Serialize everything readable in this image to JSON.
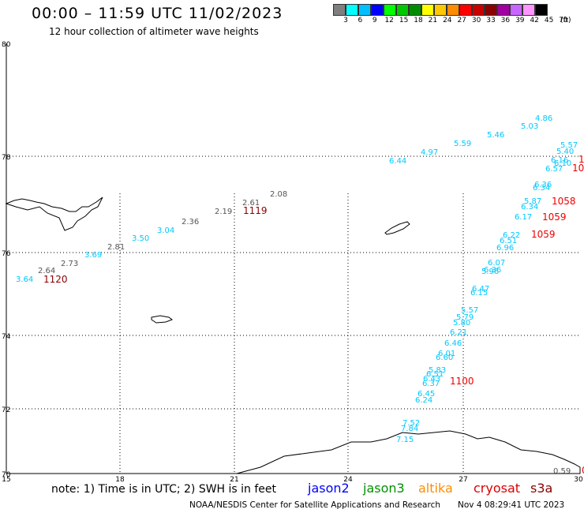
{
  "header": {
    "title": "00:00 – 11:59 UTC 11/02/2023",
    "subtitle": "12 hour collection of altimeter wave heights"
  },
  "color_scale": {
    "labels": [
      "3",
      "6",
      "9",
      "12",
      "15",
      "18",
      "21",
      "24",
      "27",
      "30",
      "33",
      "36",
      "39",
      "42",
      "45",
      "70"
    ],
    "colors": [
      "#7f7f7f",
      "#00ffff",
      "#00bfff",
      "#0000ff",
      "#00ff00",
      "#00c800",
      "#008c00",
      "#ffff00",
      "#ffc800",
      "#ff8c00",
      "#ff0000",
      "#c80000",
      "#8b0000",
      "#a000a0",
      "#c864ff",
      "#ff96ff",
      "#000000"
    ],
    "unit": "(ft)"
  },
  "map": {
    "lat_labels": [
      "80",
      "78",
      "76",
      "74",
      "72",
      "70"
    ],
    "lon_labels": [
      "15",
      "18",
      "21",
      "24",
      "27",
      "30"
    ],
    "grid": true
  },
  "tracks": {
    "gray_values": [
      "2.08",
      "2.61",
      "2.19",
      "2.36",
      "2.81",
      "2.73",
      "2.64",
      "0.59"
    ],
    "cyan_values": [
      "4.86",
      "5.03",
      "5.46",
      "5.59",
      "4.97",
      "6.44",
      "5.57",
      "5.40",
      "6.16",
      "6.10",
      "6.57",
      "3.04",
      "3.50",
      "3.69",
      "3.64",
      "6.36",
      "6.34",
      "5.87",
      "6.34",
      "6.17",
      "6.22",
      "6.51",
      "6.96",
      "6.07",
      "6.36",
      "5.96",
      "6.47",
      "6.15",
      "5.57",
      "5.79",
      "5.80",
      "6.21",
      "6.46",
      "6.01",
      "6.60",
      "5.83",
      "6.51",
      "6.43",
      "6.37",
      "6.45",
      "6.24",
      "7.52",
      "7.84",
      "7.15"
    ],
    "labels_red": [
      "1058",
      "1059",
      "1059",
      "1100",
      "1",
      "10",
      "0"
    ],
    "labels_darkred": [
      "1119",
      "1120"
    ]
  },
  "legend": {
    "note": "note: 1) Time is in UTC; 2) SWH is in feet",
    "satellites": [
      {
        "name": "jason2",
        "color": "#0000ff"
      },
      {
        "name": "jason3",
        "color": "#009000"
      },
      {
        "name": "altika",
        "color": "#ff8c00"
      },
      {
        "name": "cryosat",
        "color": "#dd0000"
      },
      {
        "name": "s3a",
        "color": "#8b0000"
      }
    ]
  },
  "footer": {
    "credit": "NOAA/NESDIS Center for Satellite Applications and Research",
    "generated": "Nov  4 08:29:41 UTC 2023"
  }
}
